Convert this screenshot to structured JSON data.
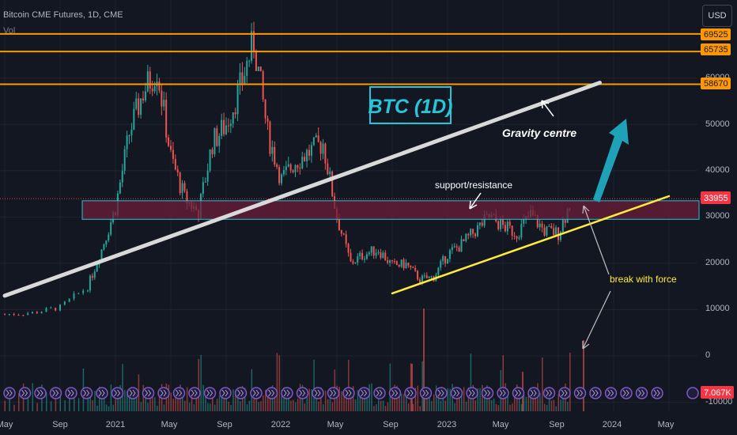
{
  "header": {
    "symbol_line": "Bitcoin CME Futures, 1D, CME",
    "vol_label": "Vol",
    "currency_button": "USD"
  },
  "colors": {
    "background": "#131722",
    "up": "#26a69a",
    "down": "#ef5350",
    "orange_level": "#ff9800",
    "trendline": "#d9d9d9",
    "support_line": "#ffeb3b",
    "zone_fill": "#6b1d3a",
    "zone_border": "#26c6da",
    "arrow": "#1fa2b8",
    "current_price": "#f23645"
  },
  "y_axis": {
    "ticks": [
      "60000",
      "50000",
      "40000",
      "30000",
      "20000",
      "10000",
      "0",
      "-10000"
    ]
  },
  "x_axis": {
    "ticks": [
      "May",
      "Sep",
      "2021",
      "May",
      "Sep",
      "2022",
      "May",
      "Sep",
      "2023",
      "May",
      "Sep",
      "2024",
      "May"
    ]
  },
  "price_tags": {
    "level_1": "69525",
    "level_2": "65735",
    "level_3": "58670",
    "current": "33955",
    "volume": "7.067K"
  },
  "annotations": {
    "title_box": "BTC (1D)",
    "gravity": "Gravity centre",
    "support": "support/resistance",
    "breakout": "break with force"
  },
  "chart_data": {
    "type": "candlestick",
    "title": "Bitcoin CME Futures, 1D, CME",
    "x_range": [
      "2020-05",
      "2024-05"
    ],
    "y_range": [
      -10000,
      72000
    ],
    "horizontal_levels": [
      69525,
      65735,
      58670
    ],
    "current_price": 33955,
    "current_volume": "7.067K",
    "support_resistance_zone": [
      29500,
      33500
    ],
    "trendlines": [
      {
        "name": "Gravity centre",
        "from": [
          "2020-05",
          13000
        ],
        "to": [
          "2023-12",
          59000
        ]
      },
      {
        "name": "support",
        "from": [
          "2022-09",
          13500
        ],
        "to": [
          "2024-05",
          34500
        ]
      }
    ],
    "price_path": [
      [
        "2020-05",
        9000
      ],
      [
        "2020-07",
        9300
      ],
      [
        "2020-09",
        10500
      ],
      [
        "2020-11",
        15000
      ],
      [
        "2020-12",
        23000
      ],
      [
        "2021-01",
        32000
      ],
      [
        "2021-02",
        48000
      ],
      [
        "2021-03",
        57000
      ],
      [
        "2021-04",
        62000
      ],
      [
        "2021-05",
        43000
      ],
      [
        "2021-06",
        34000
      ],
      [
        "2021-07",
        31000
      ],
      [
        "2021-08",
        46000
      ],
      [
        "2021-09",
        50000
      ],
      [
        "2021-10",
        58000
      ],
      [
        "2021-11",
        68000
      ],
      [
        "2021-12",
        48000
      ],
      [
        "2022-01",
        38000
      ],
      [
        "2022-02",
        42000
      ],
      [
        "2022-03",
        44000
      ],
      [
        "2022-04",
        46000
      ],
      [
        "2022-05",
        30000
      ],
      [
        "2022-06",
        20000
      ],
      [
        "2022-07",
        22000
      ],
      [
        "2022-08",
        23000
      ],
      [
        "2022-09",
        19500
      ],
      [
        "2022-10",
        19800
      ],
      [
        "2022-11",
        16500
      ],
      [
        "2022-12",
        17000
      ],
      [
        "2023-01",
        22000
      ],
      [
        "2023-02",
        24000
      ],
      [
        "2023-03",
        27000
      ],
      [
        "2023-04",
        30000
      ],
      [
        "2023-05",
        28000
      ],
      [
        "2023-06",
        26500
      ],
      [
        "2023-07",
        30500
      ],
      [
        "2023-08",
        27000
      ],
      [
        "2023-09",
        26500
      ],
      [
        "2023-10",
        34000
      ]
    ]
  }
}
